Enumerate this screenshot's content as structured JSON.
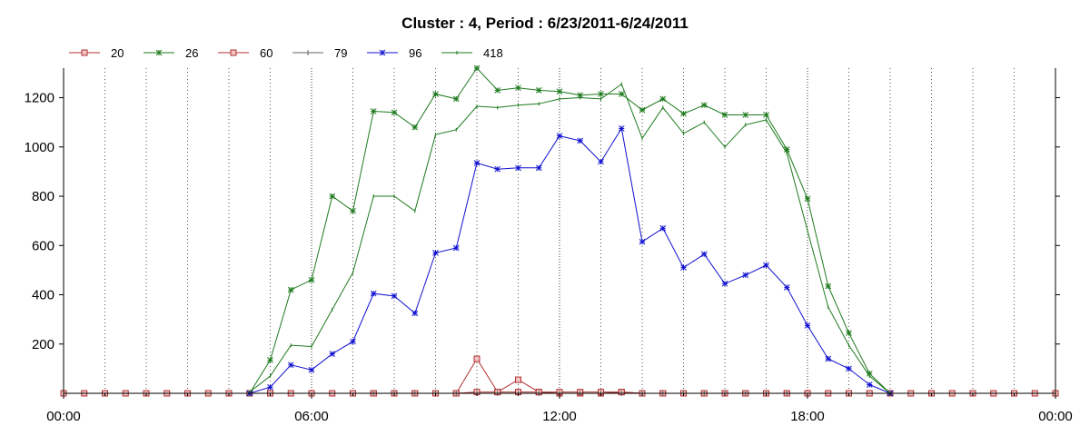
{
  "chart_data": {
    "type": "line",
    "title": "Cluster : 4, Period : 6/23/2011-6/24/2011",
    "xlabel": "",
    "ylabel": "",
    "xlim": [
      0,
      24
    ],
    "ylim": [
      0,
      1320
    ],
    "x_ticks": [
      0,
      6,
      12,
      18,
      24
    ],
    "x_tick_labels": [
      "00:00",
      "06:00",
      "12:00",
      "18:00",
      "00:00"
    ],
    "y_ticks": [
      200,
      400,
      600,
      800,
      1000,
      1200
    ],
    "y_tick_labels": [
      "200",
      "400",
      "600",
      "800",
      "1000",
      "1200"
    ],
    "grid": true,
    "legend_position": "top-left",
    "series": [
      {
        "name": "20",
        "color": "#b03030",
        "marker": "square",
        "x": [
          0,
          0.5,
          1,
          1.5,
          2,
          2.5,
          3,
          3.5,
          4,
          4.5,
          5,
          5.5,
          6,
          6.5,
          7,
          7.5,
          8,
          8.5,
          9,
          9.5,
          10,
          10.5,
          11,
          11.5,
          12,
          12.5,
          13,
          13.5,
          14,
          14.5,
          15,
          15.5,
          16,
          16.5,
          17,
          17.5,
          18,
          18.5,
          19,
          19.5,
          20,
          20.5,
          21,
          21.5,
          22,
          22.5,
          23,
          23.5,
          24
        ],
        "y": [
          0,
          0,
          0,
          0,
          0,
          0,
          0,
          0,
          0,
          0,
          0,
          0,
          0,
          0,
          0,
          0,
          0,
          0,
          0,
          0,
          140,
          5,
          55,
          5,
          0,
          0,
          0,
          5,
          0,
          0,
          0,
          0,
          0,
          0,
          0,
          0,
          0,
          0,
          0,
          0,
          0,
          0,
          0,
          0,
          0,
          0,
          0,
          0,
          0
        ]
      },
      {
        "name": "26",
        "color": "#1e7a1e",
        "marker": "star",
        "x": [
          4.5,
          5,
          5.5,
          6,
          6.5,
          7,
          7.5,
          8,
          8.5,
          9,
          9.5,
          10,
          10.5,
          11,
          11.5,
          12,
          12.5,
          13,
          13.5,
          14,
          14.5,
          15,
          15.5,
          16,
          16.5,
          17,
          17.5,
          18,
          18.5,
          19,
          19.5,
          20
        ],
        "y": [
          0,
          135,
          420,
          460,
          800,
          740,
          1145,
          1140,
          1080,
          1215,
          1195,
          1320,
          1230,
          1240,
          1230,
          1225,
          1210,
          1215,
          1215,
          1150,
          1195,
          1135,
          1170,
          1130,
          1130,
          1130,
          990,
          790,
          435,
          245,
          80,
          0
        ]
      },
      {
        "name": "60",
        "color": "#b03030",
        "marker": "square",
        "x": [
          7.5,
          8,
          8.5,
          9,
          9.5,
          10,
          10.5,
          11,
          11.5,
          12,
          12.5,
          13,
          13.5,
          14,
          14.5,
          15,
          15.5,
          16,
          16.5,
          17,
          17.5
        ],
        "y": [
          0,
          0,
          0,
          0,
          0,
          5,
          5,
          5,
          5,
          5,
          5,
          5,
          5,
          0,
          0,
          0,
          0,
          0,
          0,
          0,
          0
        ]
      },
      {
        "name": "79",
        "color": "#666666",
        "marker": "plus",
        "x": [
          7.5,
          8,
          8.5,
          9,
          9.5,
          10,
          10.5,
          11,
          11.5,
          12,
          12.5,
          13,
          13.5,
          14,
          14.5,
          15,
          15.5,
          16,
          16.5,
          17,
          17.5
        ],
        "y": [
          0,
          0,
          0,
          0,
          0,
          0,
          0,
          0,
          0,
          0,
          0,
          0,
          0,
          0,
          0,
          0,
          0,
          0,
          0,
          0,
          0
        ]
      },
      {
        "name": "96",
        "color": "#1010d0",
        "marker": "star",
        "x": [
          4.5,
          5,
          5.5,
          6,
          6.5,
          7,
          7.5,
          8,
          8.5,
          9,
          9.5,
          10,
          10.5,
          11,
          11.5,
          12,
          12.5,
          13,
          13.5,
          14,
          14.5,
          15,
          15.5,
          16,
          16.5,
          17,
          17.5,
          18,
          18.5,
          19,
          19.5,
          20
        ],
        "y": [
          0,
          25,
          115,
          95,
          160,
          210,
          405,
          395,
          325,
          570,
          590,
          935,
          910,
          915,
          915,
          1045,
          1025,
          940,
          1075,
          615,
          670,
          510,
          565,
          445,
          480,
          520,
          430,
          275,
          140,
          100,
          35,
          0
        ]
      },
      {
        "name": "418",
        "color": "#1e7a1e",
        "marker": "tick",
        "x": [
          4.5,
          5,
          5.5,
          6,
          6.5,
          7,
          7.5,
          8,
          8.5,
          9,
          9.5,
          10,
          10.5,
          11,
          11.5,
          12,
          12.5,
          13,
          13.5,
          14,
          14.5,
          15,
          15.5,
          16,
          16.5,
          17,
          17.5,
          18,
          18.5,
          19,
          19.5,
          20
        ],
        "y": [
          5,
          70,
          195,
          190,
          340,
          490,
          800,
          800,
          740,
          1050,
          1070,
          1165,
          1160,
          1170,
          1175,
          1195,
          1200,
          1195,
          1255,
          1035,
          1160,
          1055,
          1100,
          1000,
          1090,
          1110,
          975,
          660,
          350,
          195,
          70,
          0
        ]
      }
    ]
  }
}
